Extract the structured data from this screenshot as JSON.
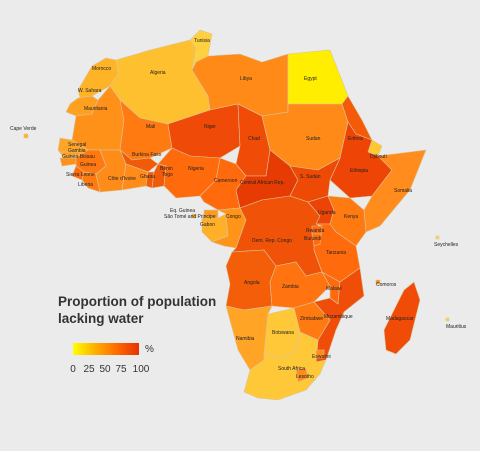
{
  "legend": {
    "title": "Proportion of population lacking water",
    "unit": "%",
    "ticks": [
      "0",
      "25",
      "50",
      "75",
      "100"
    ],
    "colors": [
      "#ffff00",
      "#ffb000",
      "#ff6a00",
      "#e63200"
    ]
  },
  "countries": [
    {
      "id": "morocco",
      "label": "Morocco",
      "color": "#ffb428"
    },
    {
      "id": "w-sahara",
      "label": "W. Sahara",
      "color": "#ffa020"
    },
    {
      "id": "algeria",
      "label": "Algeria",
      "color": "#ffc030"
    },
    {
      "id": "tunisia",
      "label": "Tunisia",
      "color": "#ffd040"
    },
    {
      "id": "libya",
      "label": "Libya",
      "color": "#ff8a18"
    },
    {
      "id": "egypt",
      "label": "Egypt",
      "color": "#ffee00"
    },
    {
      "id": "mauritania",
      "label": "Mauritania",
      "color": "#ff9018"
    },
    {
      "id": "mali",
      "label": "Mali",
      "color": "#ff7a10"
    },
    {
      "id": "niger",
      "label": "Niger",
      "color": "#f04a08"
    },
    {
      "id": "chad",
      "label": "Chad",
      "color": "#f04c08"
    },
    {
      "id": "sudan",
      "label": "Sudan",
      "color": "#ff8a18"
    },
    {
      "id": "eritrea",
      "label": "Eritrea",
      "color": "#f55a08"
    },
    {
      "id": "djibouti",
      "label": "Djibouti",
      "color": "#ffc830"
    },
    {
      "id": "ethiopia",
      "label": "Ethiopia",
      "color": "#ee4406"
    },
    {
      "id": "somalia",
      "label": "Somalia",
      "color": "#ff8c1c"
    },
    {
      "id": "senegal",
      "label": "Senegal",
      "color": "#ffa628"
    },
    {
      "id": "gambia",
      "label": "Gambia",
      "color": "#ffa020"
    },
    {
      "id": "guinea-bissau",
      "label": "Guinea-Bissau",
      "color": "#ff9018"
    },
    {
      "id": "guinea",
      "label": "Guinea",
      "color": "#ff7810"
    },
    {
      "id": "sierra-leone",
      "label": "Sierra Leone",
      "color": "#ff6a0c"
    },
    {
      "id": "liberia",
      "label": "Liberia",
      "color": "#ff7a10"
    },
    {
      "id": "cote-divoire",
      "label": "Côte d'Ivoire",
      "color": "#ff8c18"
    },
    {
      "id": "burkina-faso",
      "label": "Burkina Faso",
      "color": "#f05a08"
    },
    {
      "id": "ghana",
      "label": "Ghana",
      "color": "#ff8c18"
    },
    {
      "id": "togo",
      "label": "Togo",
      "color": "#f05a08"
    },
    {
      "id": "benin",
      "label": "Benin",
      "color": "#f05a08"
    },
    {
      "id": "nigeria",
      "label": "Nigeria",
      "color": "#ff6a0c"
    },
    {
      "id": "cameroon",
      "label": "Cameroon",
      "color": "#ff6a0c"
    },
    {
      "id": "car",
      "label": "Central African Rep.",
      "color": "#e63c04"
    },
    {
      "id": "s-sudan",
      "label": "S. Sudan",
      "color": "#ee4a06"
    },
    {
      "id": "eq-guinea",
      "label": "Eq. Guinea",
      "color": "#ff9a20"
    },
    {
      "id": "sao-tome",
      "label": "São Tomé and Principe",
      "color": "#ffb028"
    },
    {
      "id": "gabon",
      "label": "Gabon",
      "color": "#ffb028"
    },
    {
      "id": "congo",
      "label": "Congo",
      "color": "#ff9418"
    },
    {
      "id": "drc",
      "label": "Dem. Rep. Congo",
      "color": "#f05208"
    },
    {
      "id": "uganda",
      "label": "Uganda",
      "color": "#ec4406"
    },
    {
      "id": "kenya",
      "label": "Kenya",
      "color": "#ff7a10"
    },
    {
      "id": "rwanda",
      "label": "Rwanda",
      "color": "#ff6a0c"
    },
    {
      "id": "burundi",
      "label": "Burundi",
      "color": "#ff6a0c"
    },
    {
      "id": "tanzania",
      "label": "Tanzania",
      "color": "#ff6a0c"
    },
    {
      "id": "angola",
      "label": "Angola",
      "color": "#f55e08"
    },
    {
      "id": "zambia",
      "label": "Zambia",
      "color": "#ff7410"
    },
    {
      "id": "malawi",
      "label": "Malawi",
      "color": "#ff6a0c"
    },
    {
      "id": "mozambique",
      "label": "Mozambique",
      "color": "#f04e08"
    },
    {
      "id": "zimbabwe",
      "label": "Zimbabwe",
      "color": "#ff7a10"
    },
    {
      "id": "namibia",
      "label": "Namibia",
      "color": "#ffa424"
    },
    {
      "id": "botswana",
      "label": "Botswana",
      "color": "#ffc838"
    },
    {
      "id": "south-africa",
      "label": "South Africa",
      "color": "#ffc838"
    },
    {
      "id": "lesotho",
      "label": "Lesotho",
      "color": "#ff8c18"
    },
    {
      "id": "eswatini",
      "label": "Eswatini",
      "color": "#ff8c18"
    },
    {
      "id": "madagascar",
      "label": "Madagascar",
      "color": "#f04c08"
    },
    {
      "id": "cape-verde",
      "label": "Cape Verde",
      "color": "#ffb428"
    },
    {
      "id": "comoros",
      "label": "Comoros",
      "color": "#ff8a18"
    },
    {
      "id": "seychelles",
      "label": "Seychelles",
      "color": "#ffd040"
    },
    {
      "id": "mauritius",
      "label": "Mauritius",
      "color": "#ffd040"
    }
  ]
}
